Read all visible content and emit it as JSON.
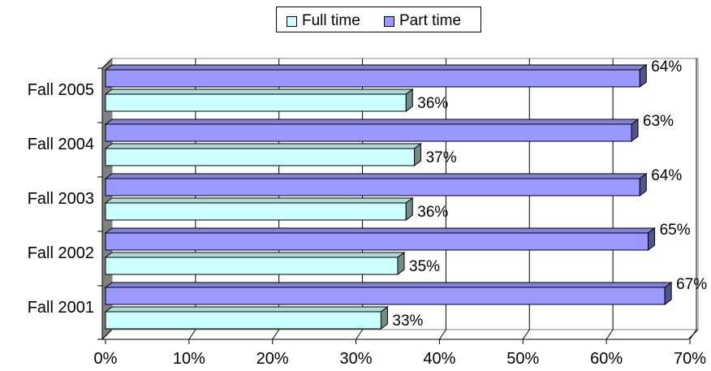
{
  "chart_data": {
    "type": "bar",
    "orientation": "horizontal",
    "categories": [
      "Fall 2005",
      "Fall 2004",
      "Fall 2003",
      "Fall 2002",
      "Fall 2001"
    ],
    "series": [
      {
        "name": "Full time",
        "values": [
          36,
          37,
          36,
          35,
          33
        ],
        "labels": [
          "36%",
          "37%",
          "36%",
          "35%",
          "33%"
        ],
        "color": "#CCFFFF"
      },
      {
        "name": "Part time",
        "values": [
          64,
          63,
          64,
          65,
          67
        ],
        "labels": [
          "64%",
          "63%",
          "64%",
          "65%",
          "67%"
        ],
        "color": "#9999FF"
      }
    ],
    "x_ticks": [
      "0%",
      "10%",
      "20%",
      "30%",
      "40%",
      "50%",
      "60%",
      "70%"
    ],
    "xlim": [
      0,
      70
    ],
    "gridlines": "vertical",
    "legend": "top"
  }
}
